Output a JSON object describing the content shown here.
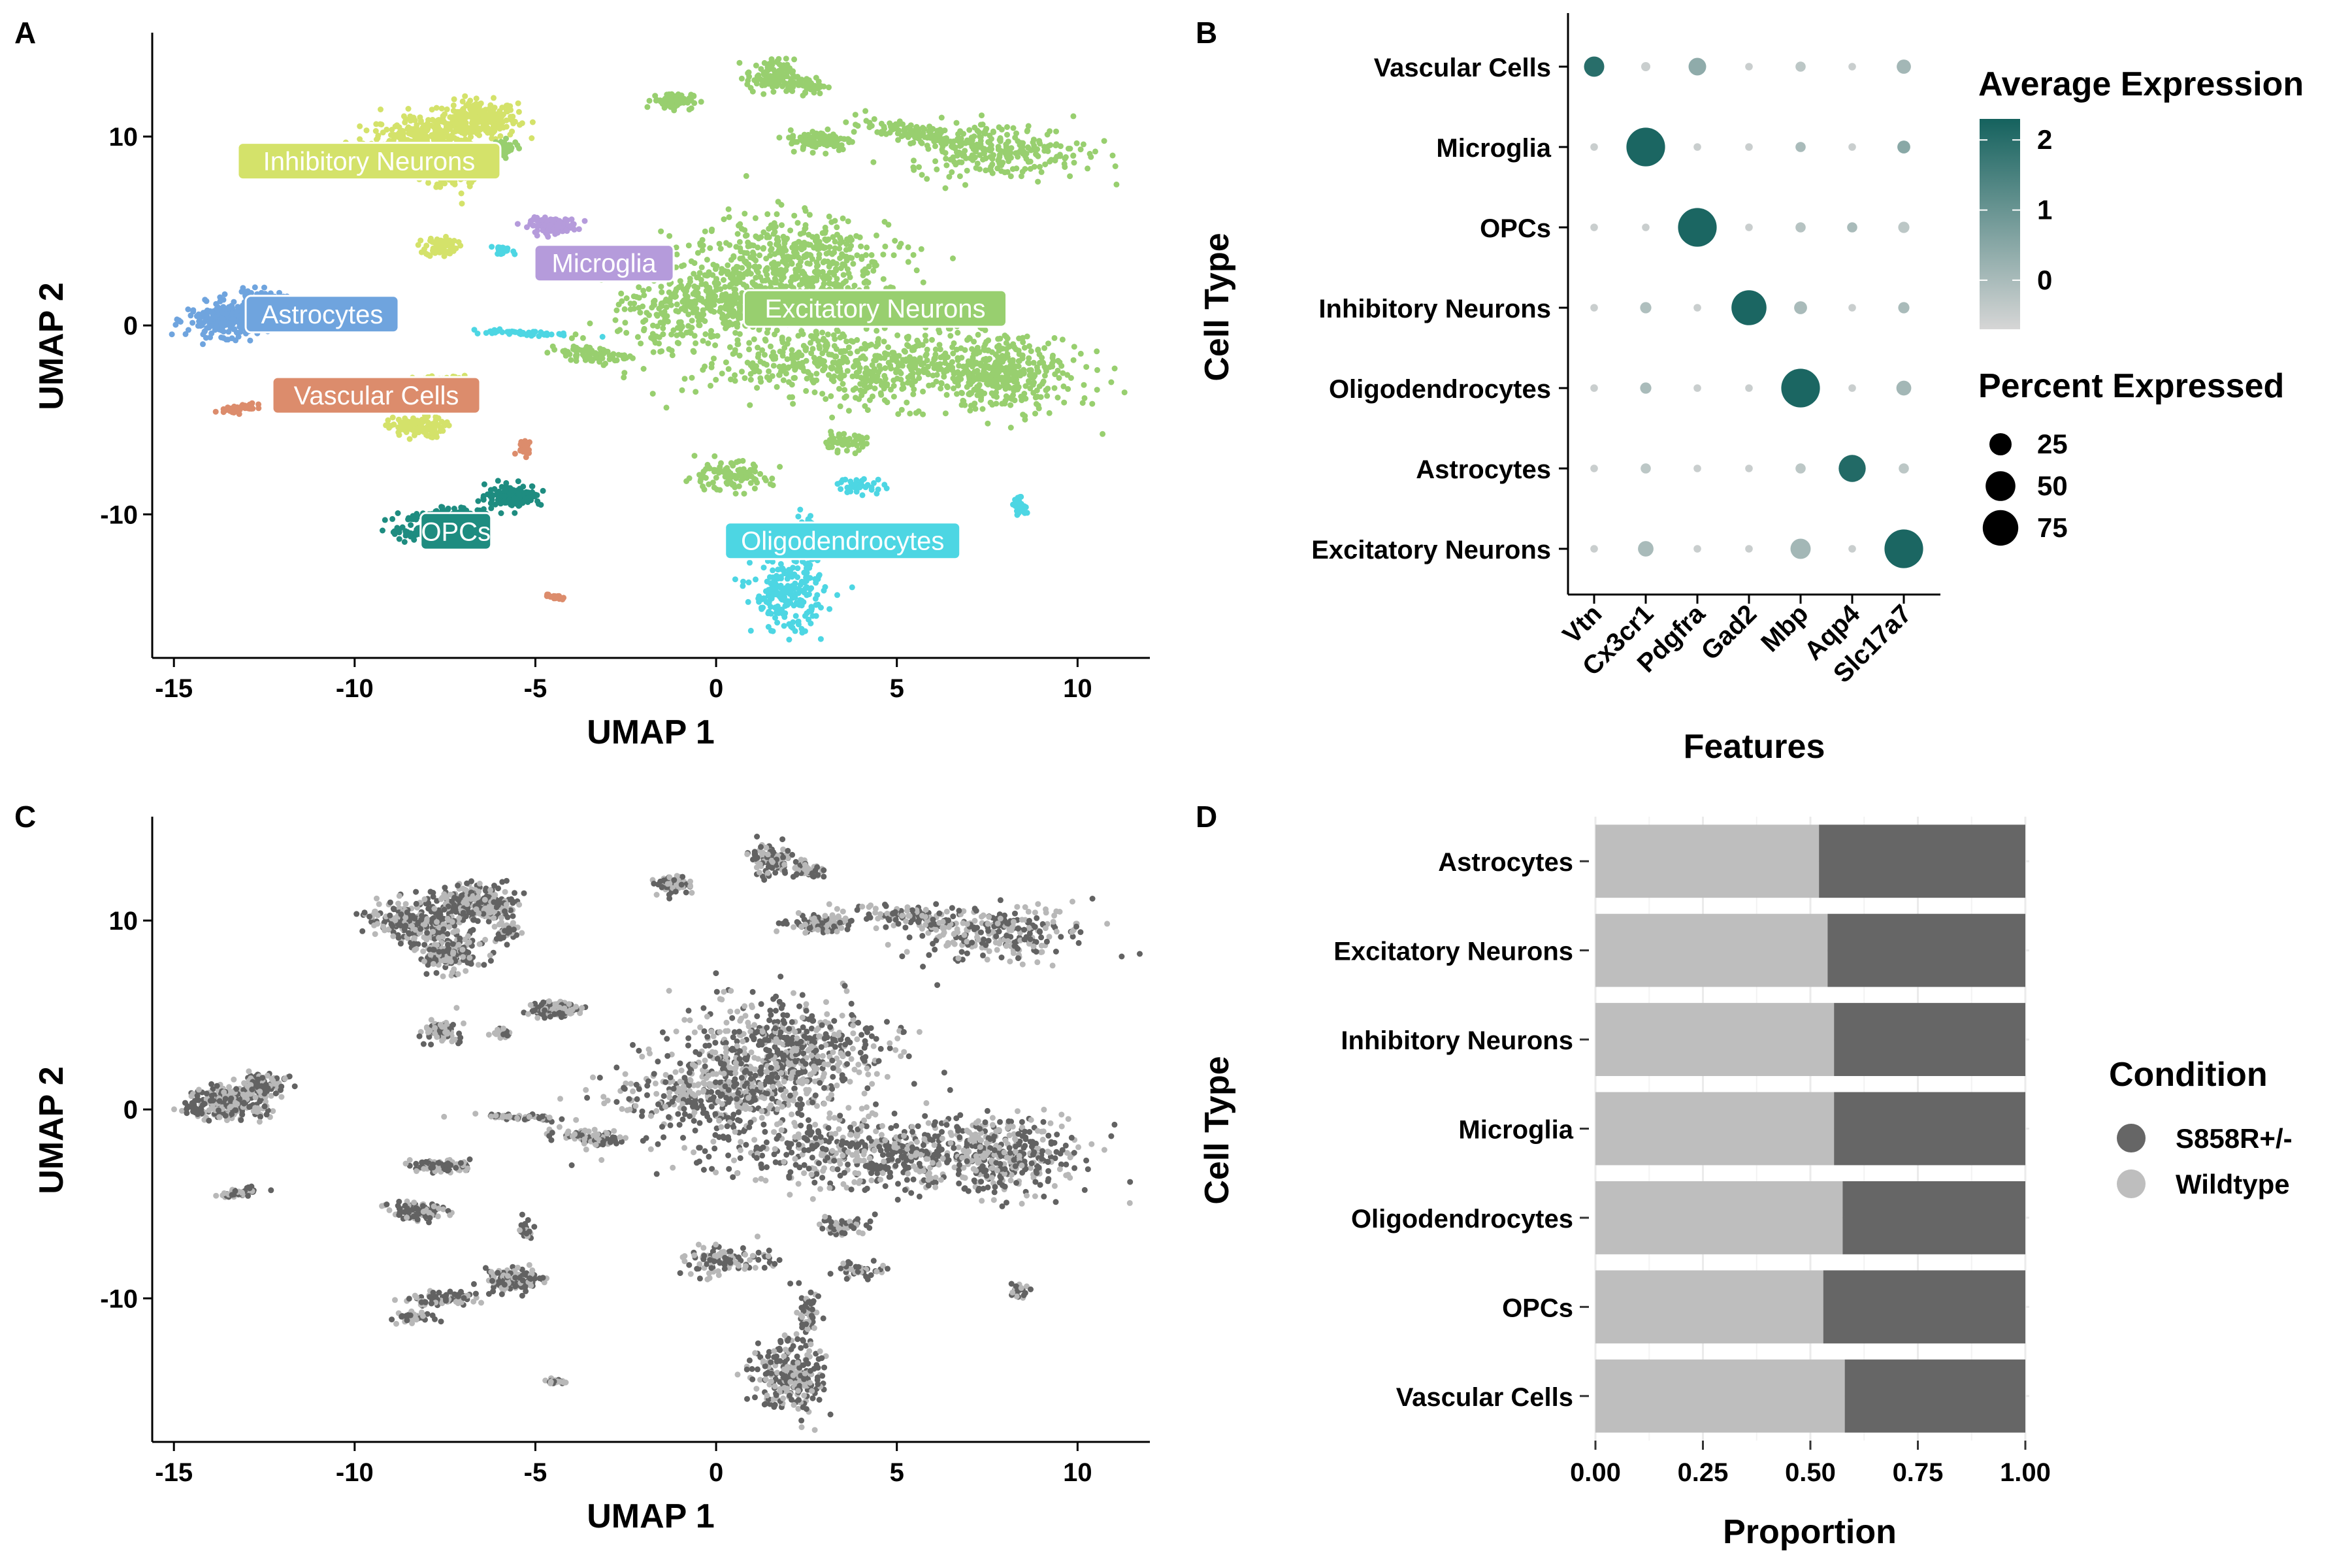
{
  "panels": {
    "a": {
      "letter": "A",
      "chart_data": {
        "type": "scatter",
        "xlabel": "UMAP 1",
        "ylabel": "UMAP 2",
        "xlim": [
          -15.6,
          12
        ],
        "ylim": [
          -17.6,
          15.5
        ],
        "x_ticks": [
          -15,
          -10,
          -5,
          0,
          5,
          10
        ],
        "y_ticks": [
          -10,
          0,
          10
        ],
        "x_tick_labels": [
          "-15",
          "-10",
          "-5",
          "0",
          "5",
          "10"
        ],
        "y_tick_labels": [
          "-10",
          "0",
          "10"
        ],
        "clusters": [
          {
            "name": "Inhibitory Neurons",
            "color": "#D4E26A",
            "label_at": [
              -9.6,
              8.7
            ]
          },
          {
            "name": "Microglia",
            "color": "#B59BDB",
            "label_at": [
              -3.1,
              3.3
            ]
          },
          {
            "name": "Astrocytes",
            "color": "#6FA4DE",
            "label_at": [
              -10.9,
              0.6
            ]
          },
          {
            "name": "Excitatory Neurons",
            "color": "#98CF6F",
            "label_at": [
              4.4,
              0.9
            ]
          },
          {
            "name": "Vascular Cells",
            "color": "#DC8C6C",
            "label_at": [
              -9.4,
              -3.7
            ]
          },
          {
            "name": "OPCs",
            "color": "#1E8C80",
            "label_at": [
              -7.2,
              -10.9
            ]
          },
          {
            "name": "Oligodendrocytes",
            "color": "#4DD6E3",
            "label_at": [
              3.5,
              -11.4
            ]
          }
        ]
      }
    },
    "b": {
      "letter": "B",
      "chart_data": {
        "type": "dot",
        "xlabel": "Features",
        "ylabel": "Cell Type",
        "features": [
          "Vtn",
          "Cx3cr1",
          "Pdgfra",
          "Gad2",
          "Mbp",
          "Aqp4",
          "Slc17a7"
        ],
        "cell_types": [
          "Vascular Cells",
          "Microglia",
          "OPCs",
          "Inhibitory Neurons",
          "Oligodendrocytes",
          "Astrocytes",
          "Excitatory Neurons"
        ],
        "avg_expression": [
          [
            2.0,
            -0.5,
            0.4,
            -0.5,
            -0.3,
            -0.5,
            0.1
          ],
          [
            -0.5,
            2.2,
            -0.5,
            -0.5,
            0.0,
            -0.5,
            0.5
          ],
          [
            -0.5,
            -0.5,
            2.2,
            -0.5,
            -0.2,
            0.0,
            -0.3
          ],
          [
            -0.5,
            -0.1,
            -0.5,
            2.2,
            0.0,
            -0.5,
            0.0
          ],
          [
            -0.5,
            0.0,
            -0.5,
            -0.5,
            2.2,
            -0.5,
            0.1
          ],
          [
            -0.5,
            -0.3,
            -0.5,
            -0.5,
            -0.3,
            2.1,
            -0.3
          ],
          [
            -0.5,
            0.0,
            -0.5,
            -0.5,
            0.1,
            -0.5,
            2.2
          ]
        ],
        "pct_expressed": [
          [
            20,
            2,
            14,
            1,
            3,
            1,
            8
          ],
          [
            1,
            90,
            1,
            1,
            3,
            1,
            6
          ],
          [
            1,
            1,
            90,
            1,
            3,
            3,
            4
          ],
          [
            1,
            4,
            1,
            72,
            6,
            1,
            4
          ],
          [
            1,
            4,
            1,
            1,
            90,
            1,
            9
          ],
          [
            1,
            3,
            1,
            1,
            3,
            40,
            3
          ],
          [
            1,
            10,
            1,
            1,
            20,
            1,
            90
          ]
        ],
        "avg_legend": {
          "title": "Average Expression",
          "range": [
            -0.7,
            2.3
          ],
          "ticks": [
            0,
            1,
            2
          ],
          "tick_labels": [
            "0",
            "1",
            "2"
          ],
          "color_low": "#D6D6D6",
          "color_high": "#15625E"
        },
        "pct_legend": {
          "title": "Percent Expressed",
          "values": [
            25,
            50,
            75
          ],
          "labels": [
            "25",
            "50",
            "75"
          ]
        }
      }
    },
    "c": {
      "letter": "C",
      "chart_data": {
        "type": "scatter",
        "xlabel": "UMAP 1",
        "ylabel": "UMAP 2",
        "xlim": [
          -15.6,
          12
        ],
        "ylim": [
          -17.6,
          15.5
        ],
        "x_ticks": [
          -15,
          -10,
          -5,
          0,
          5,
          10
        ],
        "y_ticks": [
          -10,
          0,
          10
        ],
        "x_tick_labels": [
          "-15",
          "-10",
          "-5",
          "0",
          "5",
          "10"
        ],
        "y_tick_labels": [
          "-10",
          "0",
          "10"
        ],
        "colors": {
          "S858R+/-": "#626262",
          "Wildtype": "#B8B8B8"
        }
      }
    },
    "d": {
      "letter": "D",
      "chart_data": {
        "type": "bar",
        "orientation": "horizontal",
        "stacked": true,
        "xlabel": "Proportion",
        "ylabel": "Cell Type",
        "xlim": [
          0,
          1
        ],
        "x_ticks": [
          0,
          0.25,
          0.5,
          0.75,
          1
        ],
        "x_tick_labels": [
          "0.00",
          "0.25",
          "0.50",
          "0.75",
          "1.00"
        ],
        "categories": [
          "Astrocytes",
          "Excitatory Neurons",
          "Inhibitory Neurons",
          "Microglia",
          "Oligodendrocytes",
          "OPCs",
          "Vascular Cells"
        ],
        "series": [
          {
            "name": "Wildtype",
            "color": "#BEBEBE",
            "values": [
              0.52,
              0.54,
              0.555,
              0.555,
              0.575,
              0.53,
              0.58
            ]
          },
          {
            "name": "S858R+/-",
            "color": "#666666",
            "values": [
              0.48,
              0.46,
              0.445,
              0.445,
              0.425,
              0.47,
              0.42
            ]
          }
        ],
        "legend": {
          "title": "Condition",
          "entries": [
            "S858R+/-",
            "Wildtype"
          ],
          "placement": "right"
        }
      }
    }
  }
}
